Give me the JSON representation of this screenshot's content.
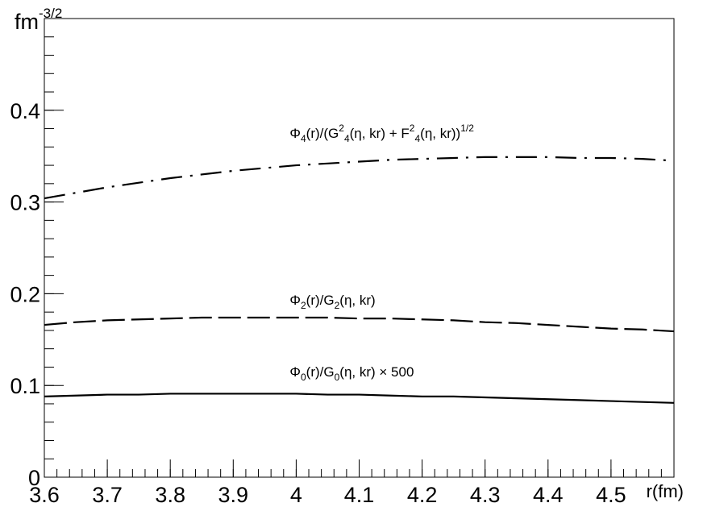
{
  "chart_data": {
    "type": "line",
    "xlabel": "r(fm)",
    "ylabel": "fm",
    "ylabel_superscript": "-3/2",
    "xlim": [
      3.6,
      4.6
    ],
    "ylim": [
      0,
      0.5
    ],
    "xticks": [
      3.6,
      3.7,
      3.8,
      3.9,
      4.0,
      4.1,
      4.2,
      4.3,
      4.4,
      4.5
    ],
    "xtick_labels": [
      "3.6",
      "3.7",
      "3.8",
      "3.9",
      "4",
      "4.1",
      "4.2",
      "4.3",
      "4.4",
      "4.5"
    ],
    "yticks": [
      0,
      0.1,
      0.2,
      0.3,
      0.4
    ],
    "ytick_labels": [
      "0",
      "0.1",
      "0.2",
      "0.3",
      "0.4"
    ],
    "grid": false,
    "legend": "inline labels above each curve",
    "series": [
      {
        "label_parts": [
          {
            "t": "Φ"
          },
          {
            "t": "4",
            "s": "sub"
          },
          {
            "t": "(r)/(G"
          },
          {
            "t": "2",
            "s": "sup"
          },
          {
            "t": "4",
            "s": "sub"
          },
          {
            "t": "(η, kr) + F"
          },
          {
            "t": "2",
            "s": "sup"
          },
          {
            "t": "4",
            "s": "sub"
          },
          {
            "t": "(η, kr))"
          },
          {
            "t": "1/2",
            "s": "sup"
          }
        ],
        "style": "dashdot",
        "label_at": [
          4.0,
          0.37
        ],
        "x": [
          3.6,
          3.65,
          3.7,
          3.75,
          3.8,
          3.85,
          3.9,
          3.95,
          4.0,
          4.05,
          4.1,
          4.15,
          4.2,
          4.25,
          4.3,
          4.35,
          4.4,
          4.45,
          4.5,
          4.55,
          4.6
        ],
        "y": [
          0.304,
          0.31,
          0.316,
          0.321,
          0.326,
          0.33,
          0.334,
          0.337,
          0.34,
          0.342,
          0.344,
          0.346,
          0.347,
          0.348,
          0.349,
          0.349,
          0.349,
          0.348,
          0.348,
          0.347,
          0.345
        ]
      },
      {
        "label_parts": [
          {
            "t": "Φ"
          },
          {
            "t": "2",
            "s": "sub"
          },
          {
            "t": "(r)/G"
          },
          {
            "t": "2",
            "s": "sub"
          },
          {
            "t": "(η, kr)"
          }
        ],
        "style": "dashed",
        "label_at": [
          4.0,
          0.188
        ],
        "x": [
          3.6,
          3.65,
          3.7,
          3.75,
          3.8,
          3.85,
          3.9,
          3.95,
          4.0,
          4.05,
          4.1,
          4.15,
          4.2,
          4.25,
          4.3,
          4.35,
          4.4,
          4.45,
          4.5,
          4.55,
          4.6
        ],
        "y": [
          0.166,
          0.169,
          0.171,
          0.172,
          0.173,
          0.174,
          0.174,
          0.174,
          0.174,
          0.174,
          0.173,
          0.173,
          0.172,
          0.171,
          0.169,
          0.168,
          0.166,
          0.164,
          0.162,
          0.161,
          0.159
        ]
      },
      {
        "label_parts": [
          {
            "t": "Φ"
          },
          {
            "t": "0",
            "s": "sub"
          },
          {
            "t": "(r)/G"
          },
          {
            "t": "0",
            "s": "sub"
          },
          {
            "t": "(η, kr) × 500"
          }
        ],
        "style": "solid",
        "label_at": [
          4.0,
          0.11
        ],
        "x": [
          3.6,
          3.65,
          3.7,
          3.75,
          3.8,
          3.85,
          3.9,
          3.95,
          4.0,
          4.05,
          4.1,
          4.15,
          4.2,
          4.25,
          4.3,
          4.35,
          4.4,
          4.45,
          4.5,
          4.55,
          4.6
        ],
        "y": [
          0.088,
          0.089,
          0.09,
          0.09,
          0.091,
          0.091,
          0.091,
          0.091,
          0.091,
          0.09,
          0.09,
          0.089,
          0.088,
          0.088,
          0.087,
          0.086,
          0.085,
          0.084,
          0.083,
          0.082,
          0.081
        ]
      }
    ]
  }
}
